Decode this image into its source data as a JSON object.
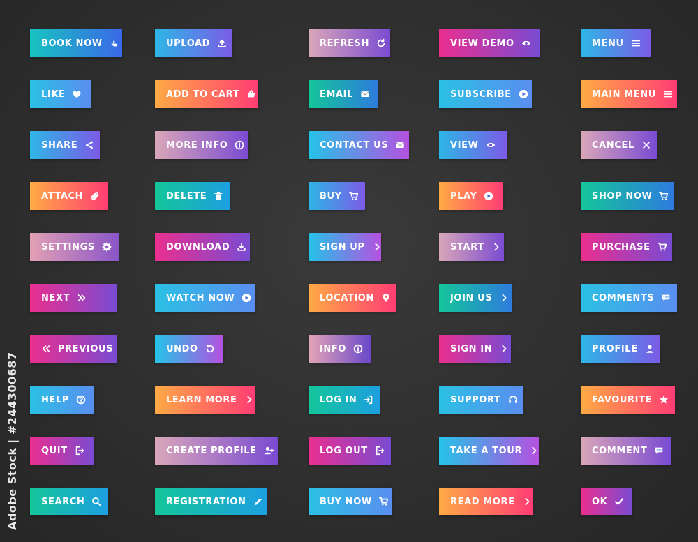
{
  "watermark_id": "Adobe Stock | #244300687",
  "buttons": [
    {
      "label": "BOOK NOW",
      "icon": "pointer-hand-icon",
      "gradient": "g-blue"
    },
    {
      "label": "UPLOAD",
      "icon": "upload-icon",
      "gradient": "g-sky"
    },
    {
      "label": "REFRESH",
      "icon": "refresh-icon",
      "gradient": "g-lilac"
    },
    {
      "label": "VIEW DEMO",
      "icon": "eye-icon",
      "gradient": "g-pink"
    },
    {
      "label": "MENU",
      "icon": "menu-icon",
      "gradient": "g-sky"
    },
    {
      "label": "LIKE",
      "icon": "heart-icon",
      "gradient": "g-sky2"
    },
    {
      "label": "ADD TO CART",
      "icon": "basket-icon",
      "gradient": "g-orange"
    },
    {
      "label": "EMAIL",
      "icon": "envelope-icon",
      "gradient": "g-mint"
    },
    {
      "label": "SUBSCRIBE",
      "icon": "play-circle-icon",
      "gradient": "g-sky2"
    },
    {
      "label": "MAIN MENU",
      "icon": "menu-icon",
      "gradient": "g-orange"
    },
    {
      "label": "SHARE",
      "icon": "share-icon",
      "gradient": "g-sky"
    },
    {
      "label": "MORE INFO",
      "icon": "info-icon",
      "gradient": "g-lilac"
    },
    {
      "label": "CONTACT US",
      "icon": "envelope-icon",
      "gradient": "g-cyanv"
    },
    {
      "label": "VIEW",
      "icon": "eye-icon",
      "gradient": "g-sky"
    },
    {
      "label": "CANCEL",
      "icon": "close-icon",
      "gradient": "g-lilac"
    },
    {
      "label": "ATTACH",
      "icon": "paperclip-icon",
      "gradient": "g-orange"
    },
    {
      "label": "DELETE",
      "icon": "trash-icon",
      "gradient": "g-teal"
    },
    {
      "label": "BUY",
      "icon": "cart-icon",
      "gradient": "g-sky"
    },
    {
      "label": "PLAY",
      "icon": "play-circle-icon",
      "gradient": "g-orange"
    },
    {
      "label": "SHOP NOW",
      "icon": "cart-icon",
      "gradient": "g-mint"
    },
    {
      "label": "SETTINGS",
      "icon": "gear-icon",
      "gradient": "g-lilac2"
    },
    {
      "label": "DOWNLOAD",
      "icon": "download-icon",
      "gradient": "g-pink"
    },
    {
      "label": "SIGN UP",
      "icon": "chevron-right-icon",
      "gradient": "g-cyanv"
    },
    {
      "label": "START",
      "icon": "chevron-right-icon",
      "gradient": "g-lilac"
    },
    {
      "label": "PURCHASE",
      "icon": "cart-icon",
      "gradient": "g-pink"
    },
    {
      "label": "NEXT",
      "icon": "double-chevron-right-icon",
      "gradient": "g-pink"
    },
    {
      "label": "WATCH NOW",
      "icon": "play-circle-icon",
      "gradient": "g-sky2"
    },
    {
      "label": "LOCATION",
      "icon": "map-pin-icon",
      "gradient": "g-orange"
    },
    {
      "label": "JOIN US",
      "icon": "chevron-right-icon",
      "gradient": "g-mint"
    },
    {
      "label": "COMMENTS",
      "icon": "chat-bubble-icon",
      "gradient": "g-sky2"
    },
    {
      "label": "PREVIOUS",
      "icon": "double-chevron-left-icon",
      "gradient": "g-pink",
      "icon_first": true
    },
    {
      "label": "UNDO",
      "icon": "undo-icon",
      "gradient": "g-cyanv"
    },
    {
      "label": "INFO",
      "icon": "info-icon",
      "gradient": "g-rose"
    },
    {
      "label": "SIGN IN",
      "icon": "chevron-right-icon",
      "gradient": "g-pink"
    },
    {
      "label": "PROFILE",
      "icon": "user-icon",
      "gradient": "g-sky"
    },
    {
      "label": "HELP",
      "icon": "question-icon",
      "gradient": "g-sky2"
    },
    {
      "label": "LEARN MORE",
      "icon": "chevron-right-icon",
      "gradient": "g-orange"
    },
    {
      "label": "LOG IN",
      "icon": "login-icon",
      "gradient": "g-teal"
    },
    {
      "label": "SUPPORT",
      "icon": "headset-icon",
      "gradient": "g-sky2"
    },
    {
      "label": "FAVOURITE",
      "icon": "star-icon",
      "gradient": "g-orange"
    },
    {
      "label": "QUIT",
      "icon": "logout-icon",
      "gradient": "g-pink"
    },
    {
      "label": "CREATE PROFILE",
      "icon": "user-plus-icon",
      "gradient": "g-lilac"
    },
    {
      "label": "LOG OUT",
      "icon": "logout-icon",
      "gradient": "g-pink"
    },
    {
      "label": "TAKE A TOUR",
      "icon": "chevron-right-icon",
      "gradient": "g-cyanv"
    },
    {
      "label": "COMMENT",
      "icon": "chat-bubble-icon",
      "gradient": "g-lilac"
    },
    {
      "label": "SEARCH",
      "icon": "search-icon",
      "gradient": "g-teal"
    },
    {
      "label": "REGISTRATION",
      "icon": "pencil-icon",
      "gradient": "g-teal"
    },
    {
      "label": "BUY NOW",
      "icon": "cart-icon",
      "gradient": "g-sky2"
    },
    {
      "label": "READ MORE",
      "icon": "chevron-right-icon",
      "gradient": "g-orange"
    },
    {
      "label": "OK",
      "icon": "check-icon",
      "gradient": "g-pink"
    }
  ]
}
